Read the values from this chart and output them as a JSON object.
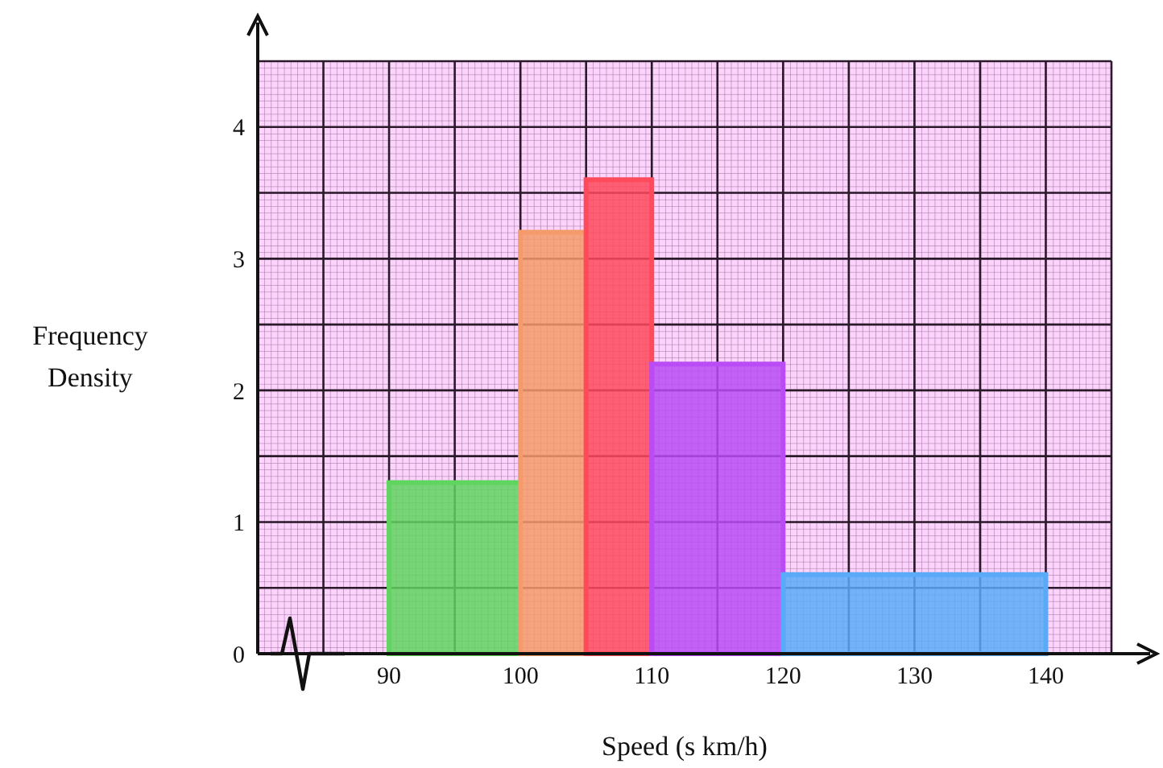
{
  "chart_data": {
    "type": "histogram",
    "xlabel": "Speed (s km/h)",
    "ylabel": "Frequency Density",
    "bins": [
      90,
      100,
      105,
      110,
      120,
      140
    ],
    "values": [
      1.3,
      3.2,
      3.6,
      2.2,
      0.6
    ],
    "colors": [
      "#5fd45f",
      "#f59a6a",
      "#ff4a5c",
      "#b94cf5",
      "#5aaaf8"
    ],
    "xlim": [
      80,
      145
    ],
    "xticks": [
      {
        "value": 80,
        "label": null
      },
      {
        "value": 85,
        "label": null
      },
      90,
      {
        "value": 95,
        "label": null
      },
      100,
      {
        "value": 105,
        "label": null
      },
      110,
      {
        "value": 115,
        "label": null
      },
      120,
      {
        "value": 125,
        "label": null
      },
      130,
      {
        "value": 135,
        "label": null
      },
      140,
      {
        "value": 145,
        "label": null
      }
    ],
    "ylim": [
      0,
      4.5
    ],
    "yticks": [
      0,
      {
        "value": 0.5,
        "label": null
      },
      1,
      {
        "value": 1.5,
        "label": null
      },
      2,
      {
        "value": 2.5,
        "label": null
      },
      3,
      {
        "value": 3.5,
        "label": null
      },
      4,
      {
        "value": 4.5,
        "label": null
      }
    ],
    "grid": true
  }
}
